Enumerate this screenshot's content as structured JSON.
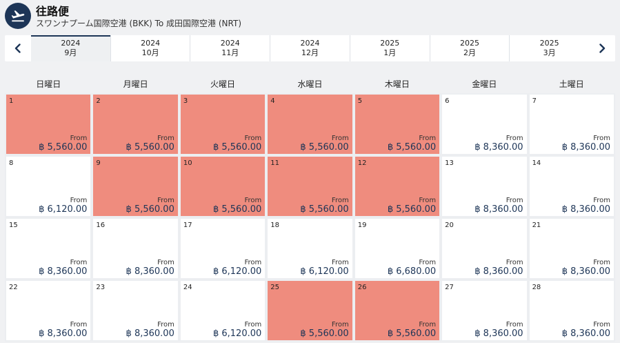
{
  "header": {
    "title": "往路便",
    "route": "スワンナプーム国際空港 (BKK) To 成田国際空港 (NRT)"
  },
  "months": [
    {
      "year": "2024",
      "month": "9月",
      "active": true
    },
    {
      "year": "2024",
      "month": "10月"
    },
    {
      "year": "2024",
      "month": "11月"
    },
    {
      "year": "2024",
      "month": "12月"
    },
    {
      "year": "2025",
      "month": "1月"
    },
    {
      "year": "2025",
      "month": "2月"
    },
    {
      "year": "2025",
      "month": "3月"
    }
  ],
  "weekdays": [
    "日曜日",
    "月曜日",
    "火曜日",
    "水曜日",
    "木曜日",
    "金曜日",
    "土曜日"
  ],
  "from_label": "From",
  "days": [
    {
      "day": "1",
      "price": "฿ 5,560.00",
      "low": true
    },
    {
      "day": "2",
      "price": "฿ 5,560.00",
      "low": true
    },
    {
      "day": "3",
      "price": "฿ 5,560.00",
      "low": true
    },
    {
      "day": "4",
      "price": "฿ 5,560.00",
      "low": true
    },
    {
      "day": "5",
      "price": "฿ 5,560.00",
      "low": true
    },
    {
      "day": "6",
      "price": "฿ 8,360.00",
      "low": false
    },
    {
      "day": "7",
      "price": "฿ 8,360.00",
      "low": false
    },
    {
      "day": "8",
      "price": "฿ 6,120.00",
      "low": false
    },
    {
      "day": "9",
      "price": "฿ 5,560.00",
      "low": true
    },
    {
      "day": "10",
      "price": "฿ 5,560.00",
      "low": true
    },
    {
      "day": "11",
      "price": "฿ 5,560.00",
      "low": true
    },
    {
      "day": "12",
      "price": "฿ 5,560.00",
      "low": true
    },
    {
      "day": "13",
      "price": "฿ 8,360.00",
      "low": false
    },
    {
      "day": "14",
      "price": "฿ 8,360.00",
      "low": false
    },
    {
      "day": "15",
      "price": "฿ 8,360.00",
      "low": false
    },
    {
      "day": "16",
      "price": "฿ 8,360.00",
      "low": false
    },
    {
      "day": "17",
      "price": "฿ 6,120.00",
      "low": false
    },
    {
      "day": "18",
      "price": "฿ 6,120.00",
      "low": false
    },
    {
      "day": "19",
      "price": "฿ 6,680.00",
      "low": false
    },
    {
      "day": "20",
      "price": "฿ 8,360.00",
      "low": false
    },
    {
      "day": "21",
      "price": "฿ 8,360.00",
      "low": false
    },
    {
      "day": "22",
      "price": "฿ 8,360.00",
      "low": false
    },
    {
      "day": "23",
      "price": "฿ 8,360.00",
      "low": false
    },
    {
      "day": "24",
      "price": "฿ 6,120.00",
      "low": false
    },
    {
      "day": "25",
      "price": "฿ 5,560.00",
      "low": true
    },
    {
      "day": "26",
      "price": "฿ 5,560.00",
      "low": true
    },
    {
      "day": "27",
      "price": "฿ 8,360.00",
      "low": false
    },
    {
      "day": "28",
      "price": "฿ 8,360.00",
      "low": false
    }
  ],
  "colors": {
    "accent": "#1d3557",
    "low_fare": "#ef8c7e",
    "cell_bg": "#ffffff",
    "page_bg": "#f0f1f3"
  }
}
